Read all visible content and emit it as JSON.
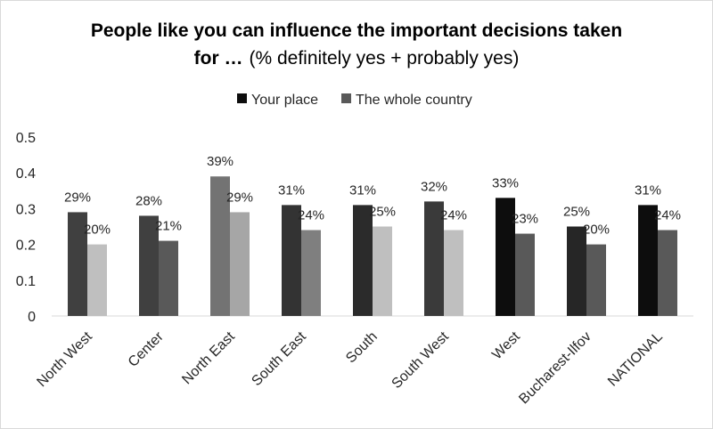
{
  "chart_data": {
    "type": "bar",
    "title_bold_line1": "People like you can influence the important decisions taken",
    "title_bold_line2": "for …",
    "title_light_line2": "(% definitely yes + probably yes)",
    "categories": [
      "North West",
      "Center",
      "North East",
      "South East",
      "South",
      "South West",
      "West",
      "Bucharest-Ilfov",
      "NATIONAL"
    ],
    "series": [
      {
        "name": "Your place",
        "legend_color": "#0d0d0d",
        "values": [
          0.29,
          0.28,
          0.39,
          0.31,
          0.31,
          0.32,
          0.33,
          0.25,
          0.31
        ],
        "labels": [
          "29%",
          "28%",
          "39%",
          "31%",
          "31%",
          "32%",
          "33%",
          "25%",
          "31%"
        ],
        "colors": [
          "#404040",
          "#404040",
          "#737373",
          "#333333",
          "#2b2b2b",
          "#3a3a3a",
          "#0d0d0d",
          "#262626",
          "#0d0d0d"
        ]
      },
      {
        "name": "The whole country",
        "legend_color": "#595959",
        "values": [
          0.2,
          0.21,
          0.29,
          0.24,
          0.25,
          0.24,
          0.23,
          0.2,
          0.24
        ],
        "labels": [
          "20%",
          "21%",
          "29%",
          "24%",
          "25%",
          "24%",
          "23%",
          "20%",
          "24%"
        ],
        "colors": [
          "#bfbfbf",
          "#595959",
          "#a6a6a6",
          "#7f7f7f",
          "#bfbfbf",
          "#bfbfbf",
          "#595959",
          "#595959",
          "#595959"
        ]
      }
    ],
    "y_ticks": [
      "0",
      "0.1",
      "0.2",
      "0.3",
      "0.4",
      "0.5"
    ],
    "ylim": [
      0,
      0.5
    ],
    "grid": false,
    "legend_position": "top-center",
    "xlabel": "",
    "ylabel": ""
  }
}
